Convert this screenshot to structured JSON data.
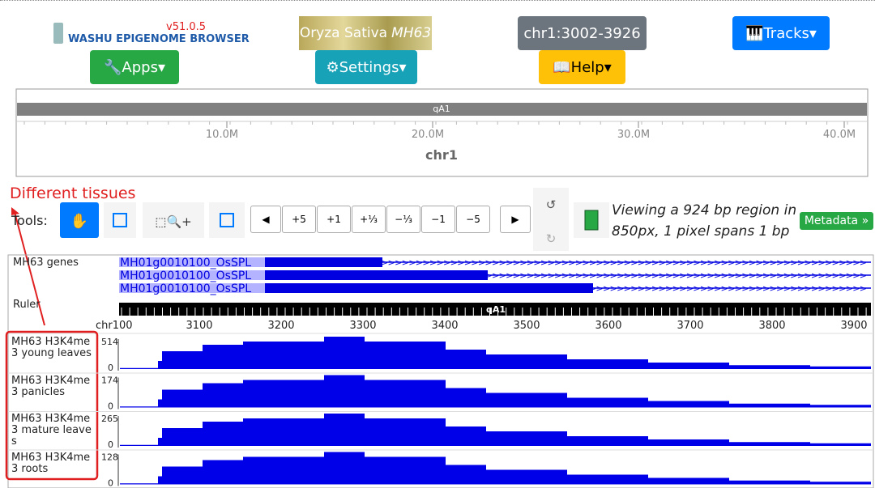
{
  "header": {
    "logo": "WASHU EPIGENOME BROWSER",
    "version": "v51.0.5",
    "genome": "Oryza Sativa",
    "genome_strain": "MH63",
    "region": "chr1:3002-3926",
    "tracks_button": "Tracks",
    "apps_button": "Apps",
    "settings_button": "Settings",
    "help_button": "Help"
  },
  "chromosome": {
    "band": "qA1",
    "ticks": [
      "10.0M",
      "20.0M",
      "30.0M",
      "40.0M"
    ],
    "name": "chr1"
  },
  "annotation": "Different tissues",
  "toolbar": {
    "label": "Tools:",
    "nav": [
      "+5",
      "+1",
      "+⅓",
      "−⅓",
      "−1",
      "−5"
    ],
    "info": "Viewing a 924 bp region in 850px, 1 pixel spans 1 bp",
    "metadata": "Metadata »"
  },
  "tracks": {
    "genes": {
      "label": "MH63 genes",
      "features": [
        "MH01g0010100_OsSPL",
        "MH01g0010100_OsSPL",
        "MH01g0010100_OsSPL"
      ]
    },
    "ruler": {
      "label": "Ruler",
      "band": "qA1",
      "chrom": "chr1",
      "ticks": [
        "3100",
        "3200",
        "3300",
        "3400",
        "3500",
        "3600",
        "3700",
        "3800",
        "3900"
      ]
    },
    "signals": [
      {
        "label": "MH63 H3K4me3 young leaves",
        "max": 514,
        "min": 0
      },
      {
        "label": "MH63 H3K4me3 panicles",
        "max": 174,
        "min": 0
      },
      {
        "label": "MH63 H3K4me3 mature leaves",
        "max": 265,
        "min": 0
      },
      {
        "label": "MH63 H3K4me3 roots",
        "max": 128,
        "min": 0
      }
    ]
  }
}
